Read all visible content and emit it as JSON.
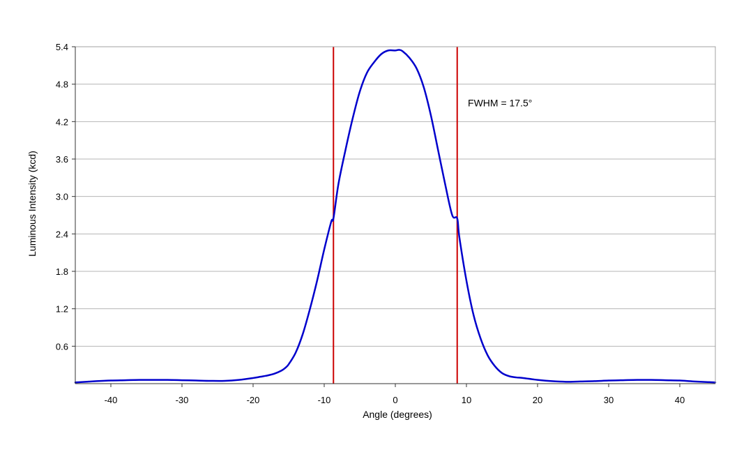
{
  "chart_data": {
    "type": "line",
    "title": "",
    "xlabel": "Angle (degrees)",
    "ylabel": "Luminous Intensity (kcd)",
    "xlim": [
      -45,
      45
    ],
    "ylim": [
      0,
      5.4
    ],
    "xticks": [
      -40,
      -30,
      -20,
      -10,
      0,
      10,
      20,
      30,
      40
    ],
    "yticks": [
      0.6,
      1.2,
      1.8,
      2.4,
      3.0,
      3.6,
      4.2,
      4.8,
      5.4
    ],
    "ytick_labels": [
      "0.6",
      "1.2",
      "1.8",
      "2.4",
      "3.0",
      "3.6",
      "4.2",
      "4.8",
      "5.4"
    ],
    "grid": "horizontal",
    "series": [
      {
        "color": "#0000cc",
        "x": [
          -45,
          -42,
          -40,
          -38,
          -36,
          -34,
          -32,
          -30,
          -28,
          -26,
          -24,
          -22,
          -20,
          -19,
          -18,
          -17,
          -16,
          -15.5,
          -15,
          -14,
          -13,
          -12,
          -11,
          -10,
          -9,
          -8.7,
          -8,
          -7,
          -6,
          -5,
          -4,
          -3,
          -2,
          -1,
          0,
          0.5,
          1,
          2,
          3,
          4,
          5,
          6,
          7,
          8,
          8.7,
          9,
          10,
          11,
          12,
          13,
          14,
          15,
          16,
          17,
          18,
          20,
          22,
          24,
          26,
          28,
          30,
          32,
          34,
          36,
          38,
          40,
          42,
          45
        ],
        "y": [
          0.02,
          0.04,
          0.05,
          0.055,
          0.06,
          0.06,
          0.06,
          0.055,
          0.05,
          0.045,
          0.045,
          0.06,
          0.09,
          0.11,
          0.13,
          0.16,
          0.21,
          0.25,
          0.31,
          0.5,
          0.8,
          1.2,
          1.65,
          2.15,
          2.6,
          2.65,
          3.2,
          3.75,
          4.25,
          4.68,
          4.98,
          5.15,
          5.28,
          5.34,
          5.34,
          5.35,
          5.33,
          5.22,
          5.05,
          4.75,
          4.3,
          3.75,
          3.2,
          2.7,
          2.65,
          2.35,
          1.65,
          1.1,
          0.72,
          0.45,
          0.28,
          0.17,
          0.12,
          0.1,
          0.09,
          0.06,
          0.04,
          0.03,
          0.035,
          0.04,
          0.05,
          0.055,
          0.06,
          0.06,
          0.055,
          0.05,
          0.035,
          0.02
        ]
      }
    ],
    "markers": {
      "color": "#cc0000",
      "x": [
        -8.7,
        8.7
      ]
    },
    "annotation": {
      "text": "FWHM = 17.5°",
      "x": 10.2,
      "y": 4.5
    }
  }
}
